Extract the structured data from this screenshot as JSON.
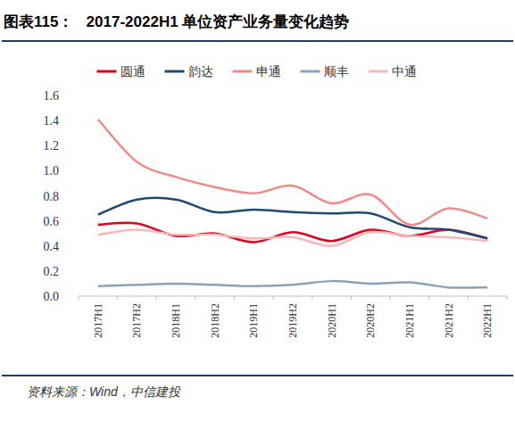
{
  "chart_data": {
    "type": "line",
    "title": "图表115：   2017-2022H1 单位资产业务量变化趋势",
    "source": "资料来源：Wind，中信建投",
    "categories": [
      "2017H1",
      "2017H2",
      "2018H1",
      "2018H2",
      "2019H1",
      "2019H2",
      "2020H1",
      "2020H2",
      "2021H1",
      "2021H2",
      "2022H1"
    ],
    "series": [
      {
        "name": "圆通",
        "color": "#e3001b",
        "values": [
          0.57,
          0.58,
          0.48,
          0.5,
          0.43,
          0.51,
          0.44,
          0.53,
          0.48,
          0.53,
          0.46
        ]
      },
      {
        "name": "韵达",
        "color": "#1f4a74",
        "values": [
          0.65,
          0.77,
          0.77,
          0.67,
          0.69,
          0.67,
          0.66,
          0.66,
          0.55,
          0.53,
          0.46
        ]
      },
      {
        "name": "申通",
        "color": "#f08a84",
        "values": [
          1.41,
          1.07,
          0.95,
          0.87,
          0.82,
          0.88,
          0.74,
          0.81,
          0.57,
          0.7,
          0.62
        ]
      },
      {
        "name": "顺丰",
        "color": "#8aa3bb",
        "values": [
          0.08,
          0.09,
          0.1,
          0.09,
          0.08,
          0.09,
          0.12,
          0.1,
          0.11,
          0.07,
          0.07
        ]
      },
      {
        "name": "中通",
        "color": "#f7b9b7",
        "values": [
          0.49,
          0.53,
          0.49,
          0.49,
          0.46,
          0.47,
          0.4,
          0.51,
          0.48,
          0.47,
          0.44
        ]
      }
    ],
    "ylim": [
      0,
      1.6
    ],
    "yticks": [
      {
        "value": 0,
        "label": "0.0"
      },
      0.2,
      0.4,
      0.6,
      0.8,
      {
        "value": 1,
        "label": "1.0"
      },
      1.2,
      1.4,
      1.6
    ],
    "grid": false,
    "legend": "top"
  }
}
